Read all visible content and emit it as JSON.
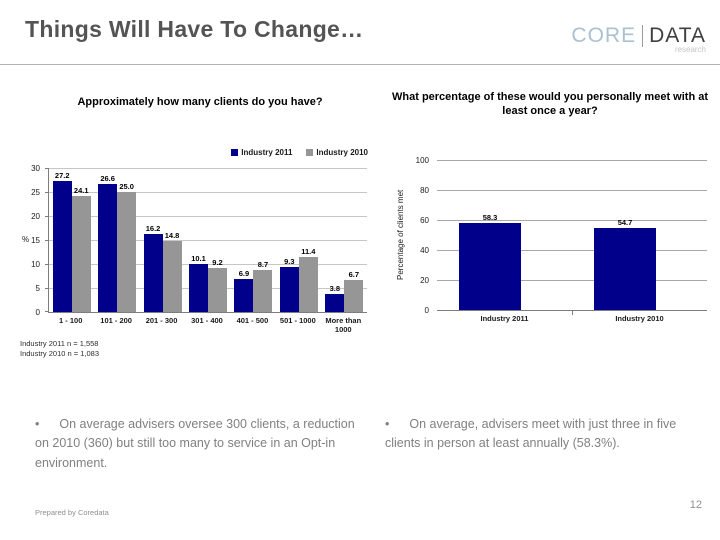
{
  "slide": {
    "title": "Things Will Have To Change…",
    "footer": "Prepared by Coredata",
    "page_number": "12",
    "bullet_marker": "•"
  },
  "logo": {
    "core": "CORE",
    "data": "DATA",
    "research": "research"
  },
  "bullets": {
    "left": "On average advisers oversee 300 clients, a reduction on 2010 (360) but still too many to service in an Opt-in environment.",
    "right": "On average, advisers meet with just three in five clients in person at least annually (58.3%)."
  },
  "colors": {
    "navy": "#00008B",
    "grey": "#969696",
    "title_grey": "#545454",
    "bullet_grey": "#808080"
  },
  "chart_data": [
    {
      "type": "bar",
      "title": "Approximately how many clients do you have?",
      "categories": [
        "1 - 100",
        "101 - 200",
        "201 - 300",
        "301 - 400",
        "401 - 500",
        "501 - 1000",
        "More than 1000"
      ],
      "series": [
        {
          "name": "Industry 2011",
          "color": "#00008B",
          "values": [
            27.2,
            26.6,
            16.2,
            10.1,
            6.9,
            9.3,
            3.8
          ]
        },
        {
          "name": "Industry 2010",
          "color": "#969696",
          "values": [
            24.1,
            25.0,
            14.8,
            9.2,
            8.7,
            11.4,
            6.7
          ]
        }
      ],
      "xlabel": "",
      "ylabel": "%",
      "ylim": [
        0,
        30
      ],
      "yticks": [
        0,
        5,
        10,
        15,
        20,
        25,
        30
      ],
      "grid": true,
      "legend_position": "top",
      "notes": [
        "Industry 2011 n = 1,558",
        "Industry 2010 n = 1,083"
      ]
    },
    {
      "type": "bar",
      "title": "What percentage of these would you personally meet with at least once a year?",
      "categories": [
        "Industry 2011",
        "Industry 2010"
      ],
      "series": [
        {
          "name": "Percentage of clients met",
          "color": "#00008B",
          "values": [
            58.3,
            54.7
          ]
        }
      ],
      "xlabel": "",
      "ylabel": "Percentage of clients met",
      "ylim": [
        0,
        100
      ],
      "yticks": [
        0,
        20,
        40,
        60,
        80,
        100
      ],
      "grid": true,
      "legend_position": "none"
    }
  ]
}
